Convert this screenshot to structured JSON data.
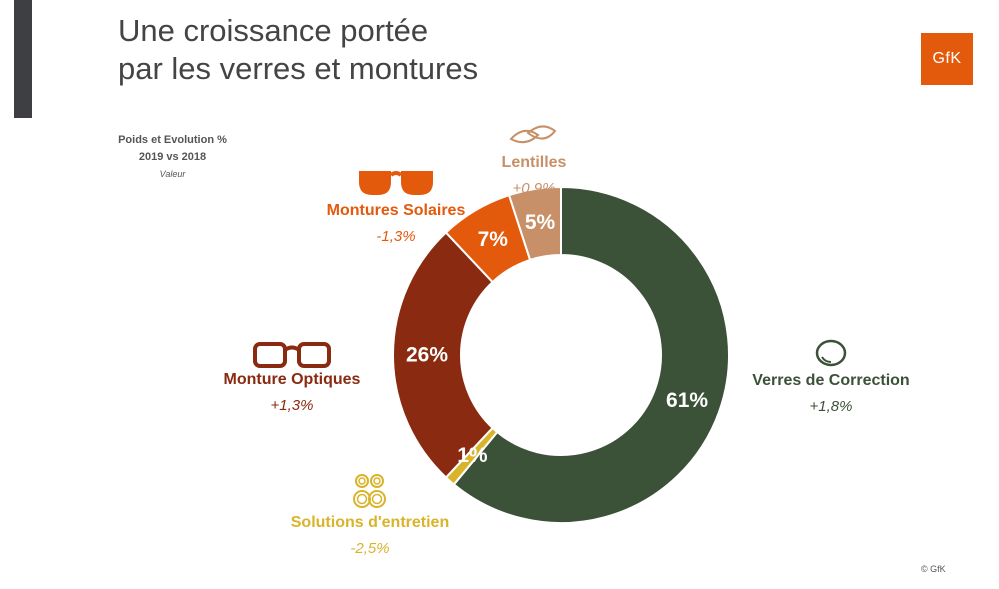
{
  "title_lines": [
    "Une croissance portée",
    "par les verres et montures"
  ],
  "logo_text": "GfK",
  "subtitle": {
    "line1": "Poids et Evolution %",
    "line2": "2019 vs 2018",
    "line3": "Valeur"
  },
  "copyright": "© GfK",
  "chart_data": {
    "type": "pie",
    "donut": true,
    "categories": [
      "Verres de Correction",
      "Solutions d'entretien",
      "Monture Optiques",
      "Montures Solaires",
      "Lentilles"
    ],
    "values": [
      61,
      1,
      26,
      7,
      5
    ],
    "value_labels": [
      "61%",
      "1%",
      "26%",
      "7%",
      "5%"
    ],
    "evolution_labels": [
      "+1,8%",
      "-2,5%",
      "+1,3%",
      "-1,3%",
      "+0,9%"
    ],
    "colors": [
      "#3c5238",
      "#d9b42a",
      "#8a2a10",
      "#e35a0c",
      "#c79068"
    ],
    "icons": [
      "lens-icon",
      "contact-lens-case-icon",
      "optical-glasses-icon",
      "sunglasses-icon",
      "contact-lenses-icon"
    ],
    "start_angle_deg": 0,
    "direction": "clockwise"
  }
}
